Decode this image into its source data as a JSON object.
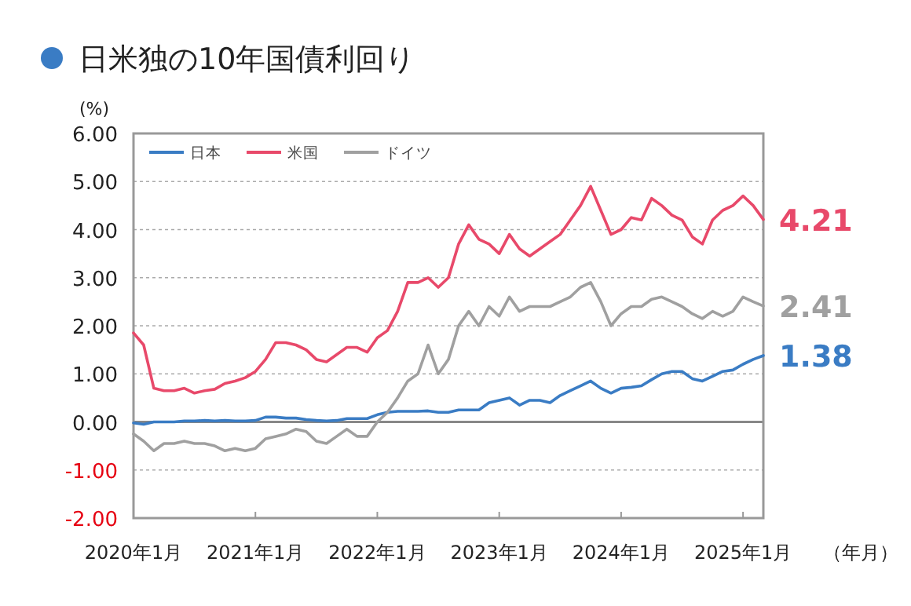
{
  "chart_data": {
    "type": "line",
    "title": "日米独の10年国債利回り",
    "ylabel": "(%)",
    "xlabel": "（年月）",
    "x": [
      "2020-01",
      "2020-02",
      "2020-03",
      "2020-04",
      "2020-05",
      "2020-06",
      "2020-07",
      "2020-08",
      "2020-09",
      "2020-10",
      "2020-11",
      "2020-12",
      "2021-01",
      "2021-02",
      "2021-03",
      "2021-04",
      "2021-05",
      "2021-06",
      "2021-07",
      "2021-08",
      "2021-09",
      "2021-10",
      "2021-11",
      "2021-12",
      "2022-01",
      "2022-02",
      "2022-03",
      "2022-04",
      "2022-05",
      "2022-06",
      "2022-07",
      "2022-08",
      "2022-09",
      "2022-10",
      "2022-11",
      "2022-12",
      "2023-01",
      "2023-02",
      "2023-03",
      "2023-04",
      "2023-05",
      "2023-06",
      "2023-07",
      "2023-08",
      "2023-09",
      "2023-10",
      "2023-11",
      "2023-12",
      "2024-01",
      "2024-02",
      "2024-03",
      "2024-04",
      "2024-05",
      "2024-06",
      "2024-07",
      "2024-08",
      "2024-09",
      "2024-10",
      "2024-11",
      "2024-12",
      "2025-01",
      "2025-02",
      "2025-03"
    ],
    "series": [
      {
        "name": "日本",
        "color": "#3a7cc4",
        "values": [
          -0.02,
          -0.05,
          0.0,
          0.0,
          0.0,
          0.02,
          0.02,
          0.03,
          0.02,
          0.03,
          0.02,
          0.02,
          0.03,
          0.1,
          0.1,
          0.08,
          0.08,
          0.05,
          0.03,
          0.02,
          0.03,
          0.07,
          0.07,
          0.07,
          0.15,
          0.2,
          0.22,
          0.22,
          0.22,
          0.23,
          0.2,
          0.2,
          0.25,
          0.25,
          0.25,
          0.4,
          0.45,
          0.5,
          0.35,
          0.45,
          0.45,
          0.4,
          0.55,
          0.65,
          0.75,
          0.85,
          0.7,
          0.6,
          0.7,
          0.72,
          0.75,
          0.88,
          1.0,
          1.05,
          1.05,
          0.9,
          0.85,
          0.95,
          1.05,
          1.08,
          1.2,
          1.3,
          1.38
        ]
      },
      {
        "name": "米国",
        "color": "#e8496a",
        "values": [
          1.85,
          1.6,
          0.7,
          0.65,
          0.65,
          0.7,
          0.6,
          0.65,
          0.68,
          0.8,
          0.85,
          0.92,
          1.05,
          1.3,
          1.65,
          1.65,
          1.6,
          1.5,
          1.3,
          1.25,
          1.4,
          1.55,
          1.55,
          1.45,
          1.75,
          1.9,
          2.3,
          2.9,
          2.9,
          3.0,
          2.8,
          3.0,
          3.7,
          4.1,
          3.8,
          3.7,
          3.5,
          3.9,
          3.6,
          3.45,
          3.6,
          3.75,
          3.9,
          4.2,
          4.5,
          4.9,
          4.4,
          3.9,
          4.0,
          4.25,
          4.2,
          4.65,
          4.5,
          4.3,
          4.2,
          3.85,
          3.7,
          4.2,
          4.4,
          4.5,
          4.7,
          4.5,
          4.21
        ]
      },
      {
        "name": "ドイツ",
        "color": "#a0a0a0",
        "values": [
          -0.25,
          -0.4,
          -0.6,
          -0.45,
          -0.45,
          -0.4,
          -0.45,
          -0.45,
          -0.5,
          -0.6,
          -0.55,
          -0.6,
          -0.55,
          -0.35,
          -0.3,
          -0.25,
          -0.15,
          -0.2,
          -0.4,
          -0.45,
          -0.3,
          -0.15,
          -0.3,
          -0.3,
          0.0,
          0.2,
          0.5,
          0.85,
          1.0,
          1.6,
          1.0,
          1.3,
          2.0,
          2.3,
          2.0,
          2.4,
          2.2,
          2.6,
          2.3,
          2.4,
          2.4,
          2.4,
          2.5,
          2.6,
          2.8,
          2.9,
          2.5,
          2.0,
          2.25,
          2.4,
          2.4,
          2.55,
          2.6,
          2.5,
          2.4,
          2.25,
          2.15,
          2.3,
          2.2,
          2.3,
          2.6,
          2.5,
          2.41
        ]
      }
    ],
    "xlim": [
      "2020-01",
      "2025-03"
    ],
    "xticks": [
      {
        "value": "2020-01",
        "label": "2020年1月"
      },
      {
        "value": "2021-01",
        "label": "2021年1月"
      },
      {
        "value": "2022-01",
        "label": "2022年1月"
      },
      {
        "value": "2023-01",
        "label": "2023年1月"
      },
      {
        "value": "2024-01",
        "label": "2024年1月"
      },
      {
        "value": "2025-01",
        "label": "2025年1月"
      }
    ],
    "ylim": [
      -2,
      6
    ],
    "yticks": [
      {
        "value": -2,
        "label": "-2.00"
      },
      {
        "value": -1,
        "label": "-1.00"
      },
      {
        "value": 0,
        "label": "0.00"
      },
      {
        "value": 1,
        "label": "1.00"
      },
      {
        "value": 2,
        "label": "2.00"
      },
      {
        "value": 3,
        "label": "3.00"
      },
      {
        "value": 4,
        "label": "4.00"
      },
      {
        "value": 5,
        "label": "5.00"
      },
      {
        "value": 6,
        "label": "6.00"
      }
    ],
    "ref_lines": [
      {
        "axis": "y",
        "value": 0
      }
    ],
    "annotations": [
      {
        "text": "4.21",
        "x": "2025-03",
        "y": 4.21
      },
      {
        "text": "2.41",
        "x": "2025-03",
        "y": 2.41
      },
      {
        "text": "1.38",
        "x": "2025-03",
        "y": 1.38
      }
    ],
    "grid": "y",
    "legend": "top left",
    "line_style": "solid",
    "marker": "none"
  }
}
